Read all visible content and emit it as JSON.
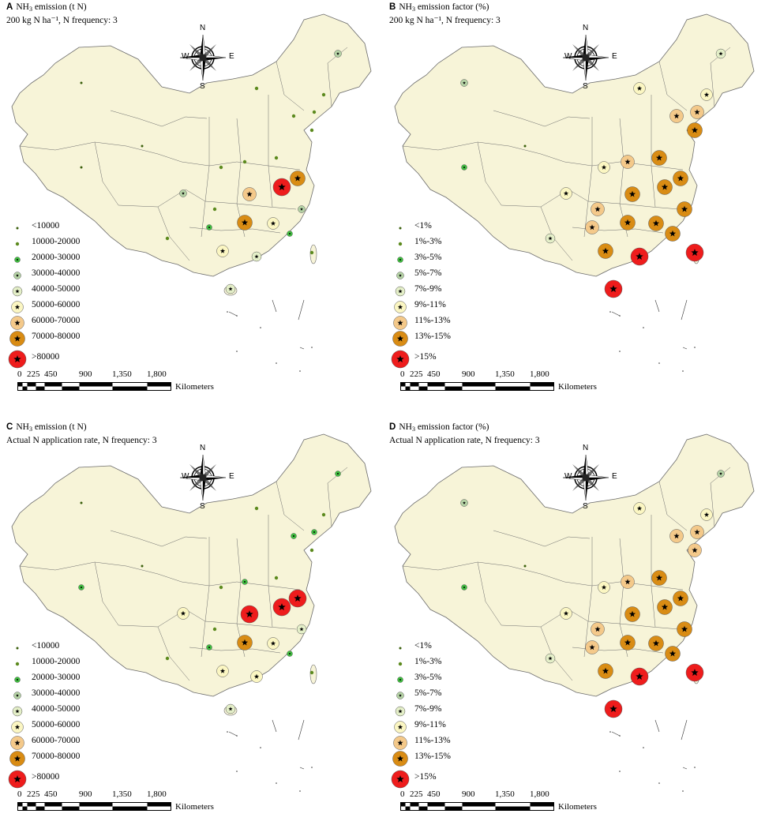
{
  "panels": [
    {
      "letter": "A",
      "title_pre": "NH",
      "title_sub": "3",
      "title_post": " emission (t N)",
      "subtitle": "200 kg N ha⁻¹, N frequency: 3",
      "legend": [
        "<10000",
        "10000-20000",
        "20000-30000",
        "30000-40000",
        "40000-50000",
        "50000-60000",
        "60000-70000",
        "70000-80000",
        ">80000"
      ]
    },
    {
      "letter": "B",
      "title_pre": "NH",
      "title_sub": "3",
      "title_post": " emission factor (%)",
      "subtitle": "200 kg N ha⁻¹, N frequency: 3",
      "legend": [
        "<1%",
        "1%-3%",
        "3%-5%",
        "5%-7%",
        "7%-9%",
        "9%-11%",
        "11%-13%",
        "13%-15%",
        ">15%"
      ]
    },
    {
      "letter": "C",
      "title_pre": "NH",
      "title_sub": "3",
      "title_post": " emission (t N)",
      "subtitle": "Actual N application rate, N frequency: 3",
      "legend": [
        "<10000",
        "10000-20000",
        "20000-30000",
        "30000-40000",
        "40000-50000",
        "50000-60000",
        "60000-70000",
        "70000-80000",
        ">80000"
      ]
    },
    {
      "letter": "D",
      "title_pre": "NH",
      "title_sub": "3",
      "title_post": " emission factor (%)",
      "subtitle": "Actual N application rate, N frequency: 3",
      "legend": [
        "<1%",
        "1%-3%",
        "3%-5%",
        "5%-7%",
        "7%-9%",
        "9%-11%",
        "11%-13%",
        "13%-15%",
        ">15%"
      ]
    }
  ],
  "compass": {
    "n": "N",
    "s": "S",
    "e": "E",
    "w": "W"
  },
  "scale": {
    "ticks": [
      "0",
      "225",
      "450",
      "900",
      "1,350",
      "1,800"
    ],
    "unit": "Kilometers"
  },
  "colors": {
    "land": "#f7f4d8",
    "border": "#6b6b6b",
    "class": [
      "#3a5f0b",
      "#5c8a1e",
      "#3fbf3f",
      "#b5d3a5",
      "#e4efc8",
      "#fbf6c2",
      "#f4c98a",
      "#d98c14",
      "#ee1c1c"
    ]
  }
}
